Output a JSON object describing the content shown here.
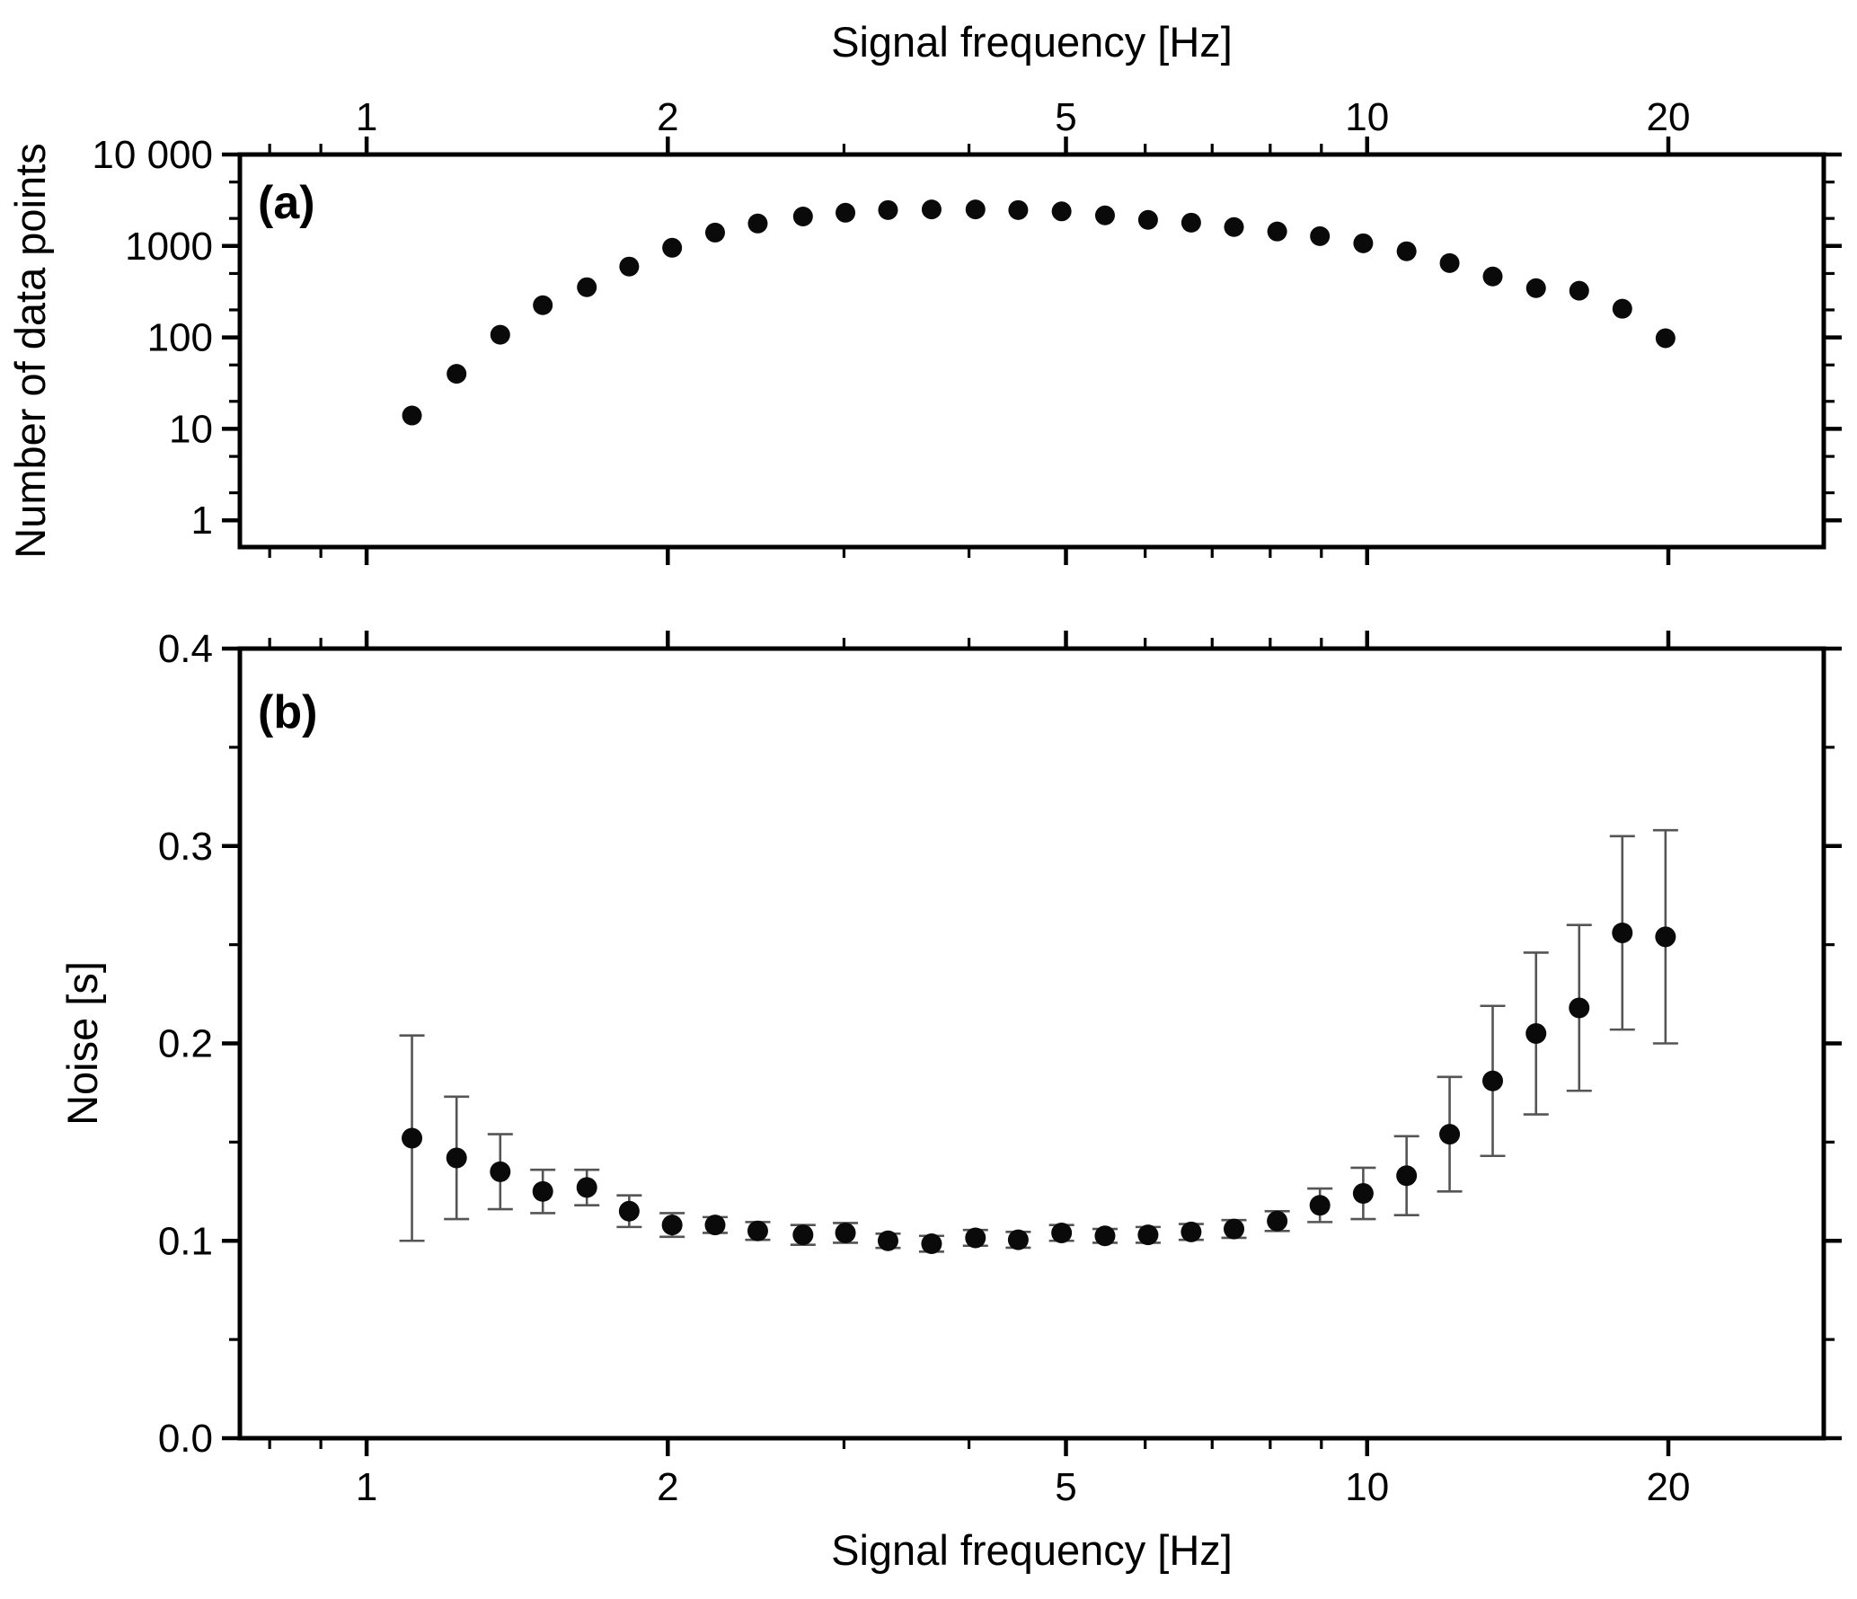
{
  "figure": {
    "background": "#ffffff",
    "axis_color": "#000000",
    "marker_color": "#0a0a0a",
    "errorbar_color": "#555555"
  },
  "panel_a": {
    "letter": "(a)",
    "top_axis_title": "Signal frequency [Hz]",
    "y_axis_title": "Number of data points",
    "x_tick_labels": [
      "1",
      "2",
      "5",
      "10",
      "20"
    ],
    "y_tick_labels": [
      "1",
      "10",
      "100",
      "1000",
      "10 000"
    ],
    "x_scale": "log",
    "y_scale": "log"
  },
  "panel_b": {
    "letter": "(b)",
    "bottom_axis_title": "Signal frequency [Hz]",
    "y_axis_title": "Noise [s]",
    "x_tick_labels": [
      "1",
      "2",
      "5",
      "10",
      "20"
    ],
    "y_tick_labels": [
      "0.0",
      "0.1",
      "0.2",
      "0.3",
      "0.4"
    ],
    "x_scale": "log",
    "y_scale": "linear"
  },
  "chart_data": [
    {
      "type": "scatter",
      "panel": "a",
      "title": "",
      "xlabel": "Signal frequency [Hz]",
      "ylabel": "Number of data points",
      "x_ticks_major": [
        1,
        2,
        5,
        10,
        20
      ],
      "x_ticks_minor": [
        0.8,
        0.9,
        3,
        4,
        6,
        7,
        8,
        9
      ],
      "y_ticks_major": [
        1,
        10,
        100,
        1000,
        10000
      ],
      "y_ticks_minor": [
        2,
        5,
        20,
        50,
        200,
        500,
        2000,
        5000
      ],
      "xlim": [
        0.747,
        28.6
      ],
      "ylim": [
        0.51,
        10000
      ],
      "grid": false,
      "x": [
        1.11,
        1.23,
        1.36,
        1.5,
        1.66,
        1.83,
        2.02,
        2.23,
        2.46,
        2.73,
        3.01,
        3.32,
        3.67,
        4.06,
        4.48,
        4.95,
        5.47,
        6.04,
        6.67,
        7.36,
        8.13,
        8.97,
        9.91,
        10.95,
        12.09,
        13.35,
        14.75,
        16.29,
        17.99,
        19.87
      ],
      "y": [
        14,
        40,
        107,
        225,
        354,
        596,
        956,
        1400,
        1760,
        2100,
        2310,
        2470,
        2510,
        2510,
        2470,
        2390,
        2160,
        1930,
        1800,
        1610,
        1440,
        1280,
        1070,
        875,
        650,
        464,
        346,
        324,
        206,
        98
      ]
    },
    {
      "type": "scatter",
      "panel": "b",
      "title": "",
      "xlabel": "Signal frequency [Hz]",
      "ylabel": "Noise [s]",
      "x_ticks_major": [
        1,
        2,
        5,
        10,
        20
      ],
      "x_ticks_minor": [
        0.8,
        0.9,
        3,
        4,
        6,
        7,
        8,
        9
      ],
      "y_ticks_major": [
        0,
        0.1,
        0.2,
        0.3,
        0.4
      ],
      "y_ticks_minor": [
        0.05,
        0.15,
        0.25,
        0.35
      ],
      "xlim": [
        0.747,
        28.6
      ],
      "ylim": [
        0,
        0.4
      ],
      "grid": false,
      "error_bars": true,
      "x": [
        1.11,
        1.23,
        1.36,
        1.5,
        1.66,
        1.83,
        2.02,
        2.23,
        2.46,
        2.73,
        3.01,
        3.32,
        3.67,
        4.06,
        4.48,
        4.95,
        5.47,
        6.04,
        6.67,
        7.36,
        8.13,
        8.97,
        9.91,
        10.95,
        12.09,
        13.35,
        14.75,
        16.29,
        17.99,
        19.87
      ],
      "y": [
        0.152,
        0.142,
        0.135,
        0.125,
        0.127,
        0.115,
        0.108,
        0.108,
        0.105,
        0.103,
        0.104,
        0.1,
        0.0985,
        0.1015,
        0.1005,
        0.104,
        0.1025,
        0.103,
        0.1045,
        0.106,
        0.11,
        0.118,
        0.124,
        0.133,
        0.154,
        0.181,
        0.205,
        0.218,
        0.256,
        0.254
      ],
      "yerr": [
        0.052,
        0.031,
        0.019,
        0.011,
        0.009,
        0.008,
        0.006,
        0.004,
        0.0045,
        0.005,
        0.005,
        0.0036,
        0.004,
        0.004,
        0.004,
        0.004,
        0.0035,
        0.004,
        0.004,
        0.0045,
        0.005,
        0.0085,
        0.013,
        0.02,
        0.029,
        0.038,
        0.041,
        0.042,
        0.049,
        0.054
      ]
    }
  ]
}
